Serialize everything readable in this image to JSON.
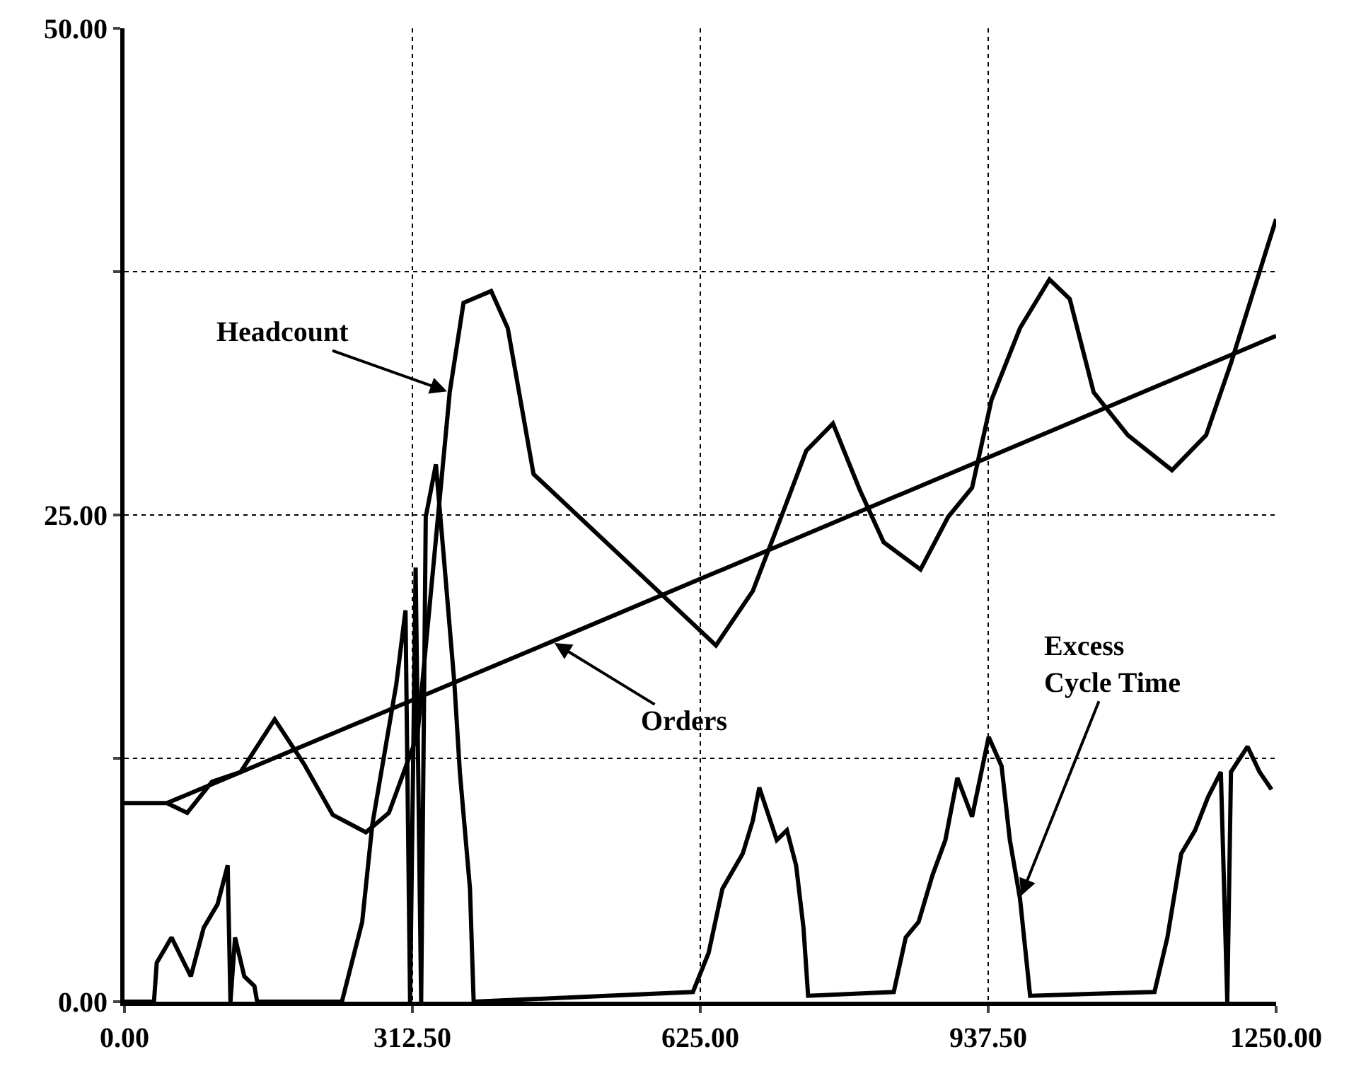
{
  "chart_data": {
    "type": "line",
    "xlim": [
      0,
      1250
    ],
    "ylim": [
      0,
      50
    ],
    "xticks": [
      {
        "value": 0,
        "label": "0.00"
      },
      {
        "value": 312.5,
        "label": "312.50"
      },
      {
        "value": 625,
        "label": "625.00"
      },
      {
        "value": 937.5,
        "label": "937.50"
      },
      {
        "value": 1250,
        "label": "1250.00"
      }
    ],
    "yticks": [
      {
        "value": 0,
        "label": "0.00"
      },
      {
        "value": 12.5,
        "label": null
      },
      {
        "value": 25,
        "label": "25.00"
      },
      {
        "value": 37.5,
        "label": null
      },
      {
        "value": 50,
        "label": "50.00"
      }
    ],
    "annotations": [
      {
        "text": "Headcount",
        "x": 353,
        "y": 31.3
      },
      {
        "text": "Orders",
        "x": 464,
        "y": 18.5
      },
      {
        "text": "Excess Cycle Time",
        "x": 972,
        "y": 5.3
      }
    ],
    "grid": true,
    "legend": false,
    "marker": "none",
    "line_style": "solid",
    "series": [
      {
        "color": "#000000",
        "x": [
          0,
          46,
          68,
          95,
          126,
          163,
          195,
          226,
          262,
          287,
          318,
          353,
          368,
          398,
          416,
          444,
          642,
          682,
          708,
          740,
          769,
          798,
          824,
          864,
          894,
          920,
          941,
          972,
          1004,
          1026,
          1052,
          1089,
          1137,
          1174,
          1201,
          1238,
          1250
        ],
        "values": [
          10.2,
          10.2,
          9.7,
          11.3,
          11.8,
          14.5,
          12.2,
          9.6,
          8.7,
          9.7,
          13.7,
          31.3,
          35.9,
          36.5,
          34.6,
          27.1,
          18.3,
          21.1,
          24.3,
          28.3,
          29.7,
          26.3,
          23.6,
          22.2,
          24.9,
          26.4,
          30.9,
          34.6,
          37.1,
          36.1,
          31.3,
          29.1,
          27.3,
          29.1,
          32.8,
          38.4,
          40.2
        ]
      },
      {
        "color": "#000000",
        "x": [
          46,
          464,
          1250
        ],
        "values": [
          10.2,
          18.5,
          34.2
        ]
      },
      {
        "color": "#000000",
        "x": [
          0,
          32,
          35,
          51,
          72,
          86,
          101,
          112,
          115,
          120,
          130,
          141,
          144,
          236,
          258,
          269,
          295,
          305,
          310,
          316,
          322,
          327,
          338,
          347,
          358,
          364,
          375,
          379,
          617,
          634,
          649,
          671,
          682,
          689,
          708,
          719,
          729,
          737,
          742,
          835,
          848,
          862,
          877,
          891,
          904,
          920,
          938,
          952,
          961,
          972,
          983,
          1118,
          1132,
          1147,
          1162,
          1176,
          1190,
          1197,
          1201,
          1219,
          1232,
          1245
        ],
        "values": [
          0,
          0,
          2.0,
          3.3,
          1.3,
          3.8,
          5.0,
          7.0,
          0,
          3.3,
          1.3,
          0.8,
          0,
          0,
          4.1,
          9.1,
          16.3,
          20.1,
          0,
          22.3,
          0,
          24.9,
          27.6,
          22.6,
          16.4,
          11.8,
          5.8,
          0,
          0.5,
          2.5,
          5.8,
          7.6,
          9.3,
          11.0,
          8.3,
          8.8,
          7.0,
          3.8,
          0.3,
          0.5,
          3.3,
          4.1,
          6.5,
          8.3,
          11.5,
          9.5,
          13.6,
          12.1,
          8.3,
          5.3,
          0.3,
          0.5,
          3.3,
          7.6,
          8.8,
          10.5,
          11.8,
          0,
          11.8,
          13.1,
          11.8,
          10.9
        ]
      }
    ]
  }
}
